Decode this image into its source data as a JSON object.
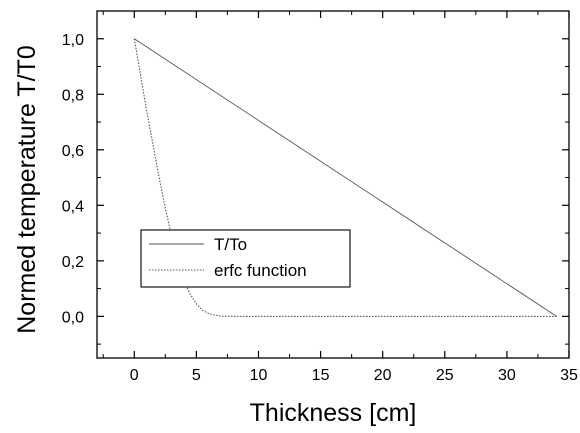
{
  "chart_data": {
    "type": "line",
    "xlabel": "Thickness [cm]",
    "ylabel": "Normed temperature T/T0",
    "xlim": [
      -3,
      35
    ],
    "ylim": [
      -0.15,
      1.1
    ],
    "x_ticks": [
      0,
      5,
      10,
      15,
      20,
      25,
      30,
      35
    ],
    "x_tick_labels": [
      "0",
      "5",
      "10",
      "15",
      "20",
      "25",
      "30",
      "35"
    ],
    "y_ticks": [
      0.0,
      0.2,
      0.4,
      0.6,
      0.8,
      1.0
    ],
    "y_tick_labels": [
      "0,0",
      "0,2",
      "0,4",
      "0,6",
      "0,8",
      "1,0"
    ],
    "grid": false,
    "legend_position": "lower-left",
    "series": [
      {
        "name": "T/To",
        "style": "solid",
        "color": "#555555",
        "x": [
          0,
          34
        ],
        "y": [
          1.0,
          0.0
        ]
      },
      {
        "name": "erfc function",
        "style": "dotted",
        "color": "#555555",
        "x": [
          0,
          0.5,
          1,
          1.5,
          2,
          2.5,
          3,
          3.5,
          4,
          4.5,
          5,
          5.5,
          6,
          6.5,
          7,
          8,
          10,
          15,
          20,
          25,
          30,
          34
        ],
        "y": [
          1.0,
          0.87,
          0.74,
          0.62,
          0.5,
          0.39,
          0.29,
          0.2,
          0.13,
          0.08,
          0.045,
          0.022,
          0.01,
          0.004,
          0.001,
          0.0,
          0.0,
          0.0,
          0.0,
          0.0,
          0.0,
          0.0
        ]
      }
    ]
  }
}
